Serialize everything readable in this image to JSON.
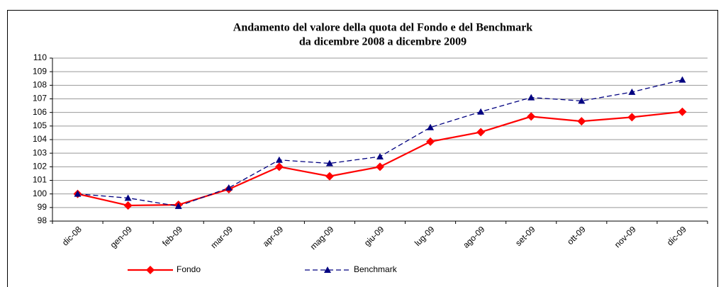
{
  "chart_data": {
    "type": "line",
    "title": "Andamento del valore della quota del Fondo e del Benchmark",
    "subtitle": "da dicembre 2008 a dicembre 2009",
    "categories": [
      "dic-08",
      "gen-09",
      "feb-09",
      "mar-09",
      "apr-09",
      "mag-09",
      "giu-09",
      "lug-09",
      "ago-09",
      "set-09",
      "ott-09",
      "nov-09",
      "dic-09"
    ],
    "series": [
      {
        "name": "Fondo",
        "color": "#ff0000",
        "marker": "diamond",
        "dashed": false,
        "values": [
          100,
          99.15,
          99.2,
          100.35,
          102,
          101.3,
          102,
          103.85,
          104.55,
          105.7,
          105.35,
          105.65,
          106.05
        ]
      },
      {
        "name": "Benchmark",
        "color": "#000080",
        "marker": "triangle",
        "dashed": true,
        "values": [
          100,
          99.7,
          99.1,
          100.45,
          102.5,
          102.25,
          102.75,
          104.9,
          106.05,
          107.1,
          106.85,
          107.5,
          108.4
        ]
      }
    ],
    "ylim": [
      98,
      110
    ],
    "yticks": [
      98,
      99,
      100,
      101,
      102,
      103,
      104,
      105,
      106,
      107,
      108,
      109,
      110
    ],
    "grid": true,
    "legend": "bottom"
  }
}
